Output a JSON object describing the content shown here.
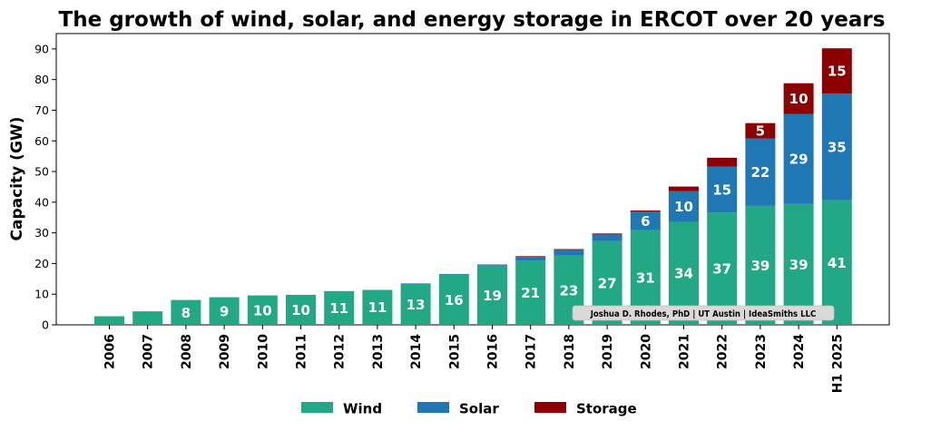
{
  "chart_data": {
    "type": "bar",
    "stacked": true,
    "title": "The growth of wind, solar, and energy storage in ERCOT over 20 years",
    "xlabel": "",
    "ylabel": "Capacity (GW)",
    "ylim": [
      0,
      95
    ],
    "yticks": [
      0,
      10,
      20,
      30,
      40,
      50,
      60,
      70,
      80,
      90
    ],
    "grid": false,
    "legend_position": "bottom",
    "categories": [
      "2006",
      "2007",
      "2008",
      "2009",
      "2010",
      "2011",
      "2012",
      "2013",
      "2014",
      "2015",
      "2016",
      "2017",
      "2018",
      "2019",
      "2020",
      "2021",
      "2022",
      "2023",
      "2024",
      "H1 2025"
    ],
    "series": [
      {
        "name": "Wind",
        "color": "#22a884",
        "values": [
          2.8,
          4.4,
          8.1,
          9.0,
          9.6,
          9.8,
          11.0,
          11.4,
          13.4,
          16.4,
          19.3,
          21.0,
          22.6,
          27.3,
          30.9,
          33.6,
          36.6,
          38.8,
          39.4,
          40.6
        ],
        "labels": [
          "",
          "",
          "8",
          "9",
          "10",
          "10",
          "11",
          "11",
          "13",
          "16",
          "19",
          "21",
          "23",
          "27",
          "31",
          "34",
          "37",
          "39",
          "39",
          "41"
        ]
      },
      {
        "name": "Solar",
        "color": "#1f77b4",
        "values": [
          0,
          0,
          0,
          0,
          0,
          0,
          0,
          0,
          0.1,
          0.2,
          0.4,
          1.3,
          2.0,
          2.2,
          6.0,
          10.0,
          15.0,
          22.0,
          29.4,
          34.8
        ],
        "labels": [
          "",
          "",
          "",
          "",
          "",
          "",
          "",
          "",
          "",
          "",
          "",
          "",
          "",
          "",
          "6",
          "10",
          "15",
          "22",
          "29",
          "35"
        ]
      },
      {
        "name": "Storage",
        "color": "#8b0000",
        "values": [
          0,
          0,
          0,
          0,
          0,
          0,
          0,
          0,
          0,
          0,
          0,
          0.1,
          0.1,
          0.3,
          0.4,
          1.5,
          2.9,
          5.0,
          10.0,
          14.8
        ],
        "labels": [
          "",
          "",
          "",
          "",
          "",
          "",
          "",
          "",
          "",
          "",
          "",
          "",
          "",
          "",
          "",
          "",
          "",
          "5",
          "10",
          "15"
        ]
      }
    ],
    "annotation": "Joshua D. Rhodes, PhD | UT Austin | IdeaSmiths LLC"
  }
}
